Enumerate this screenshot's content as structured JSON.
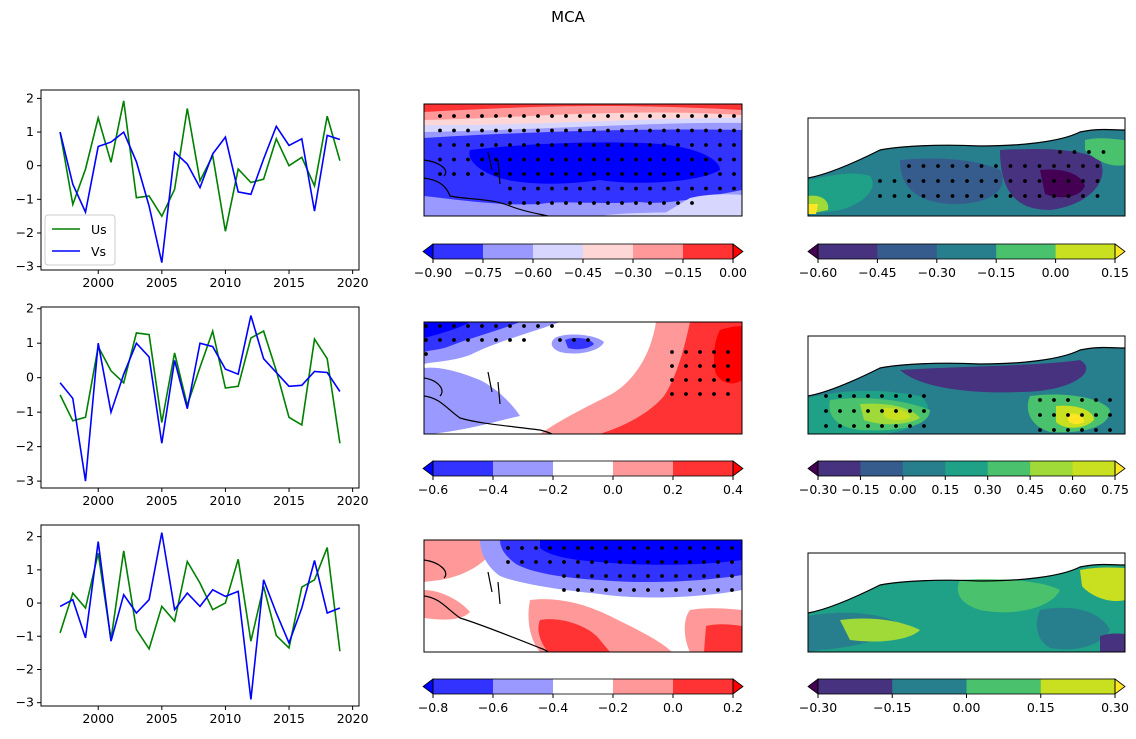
{
  "title": "MCA",
  "colors": {
    "us_line": "#008000",
    "vs_line": "#0000ff",
    "bwr": [
      "#0000ff",
      "#3333ff",
      "#9999ff",
      "#d6d6ff",
      "#ffffff",
      "#ffd6d6",
      "#ff9999",
      "#ff3333",
      "#ff0000"
    ],
    "viridis": [
      "#440154",
      "#46327e",
      "#365c8d",
      "#277f8e",
      "#1fa187",
      "#4ac16d",
      "#a0da39",
      "#c8e020",
      "#fde725"
    ]
  },
  "chart_data": [
    {
      "type": "line",
      "xlim": [
        1995.5,
        2020.5
      ],
      "ylim": [
        -3.1,
        2.25
      ],
      "xticks": [
        2000,
        2005,
        2010,
        2015,
        2020
      ],
      "yticks": [
        -3,
        -2,
        -1,
        0,
        1,
        2
      ],
      "x": [
        1997,
        1998,
        1999,
        2000,
        2001,
        2002,
        2003,
        2004,
        2005,
        2006,
        2007,
        2008,
        2009,
        2010,
        2011,
        2012,
        2013,
        2014,
        2015,
        2016,
        2017,
        2018,
        2019
      ],
      "legend_position": "lower-left",
      "series": [
        {
          "name": "Us",
          "values": [
            1.0,
            -1.15,
            -0.1,
            1.42,
            0.1,
            1.93,
            -0.95,
            -0.9,
            -1.5,
            -0.7,
            1.7,
            -0.45,
            0.3,
            -1.95,
            -0.1,
            -0.5,
            -0.4,
            0.8,
            0.0,
            0.25,
            -0.6,
            1.47,
            0.15
          ]
        },
        {
          "name": "Vs",
          "values": [
            1.0,
            -0.55,
            -1.38,
            0.57,
            0.7,
            1.0,
            0.12,
            -1.2,
            -2.88,
            0.4,
            0.05,
            -0.65,
            0.35,
            0.85,
            -0.78,
            -0.85,
            0.2,
            1.17,
            0.6,
            0.8,
            -1.35,
            0.9,
            0.78
          ]
        }
      ]
    },
    {
      "type": "line",
      "xlim": [
        1995.5,
        2020.5
      ],
      "ylim": [
        -3.2,
        2.05
      ],
      "xticks": [
        2000,
        2005,
        2010,
        2015,
        2020
      ],
      "yticks": [
        -3,
        -2,
        -1,
        0,
        1,
        2
      ],
      "x": [
        1997,
        1998,
        1999,
        2000,
        2001,
        2002,
        2003,
        2004,
        2005,
        2006,
        2007,
        2008,
        2009,
        2010,
        2011,
        2012,
        2013,
        2014,
        2015,
        2016,
        2017,
        2018,
        2019
      ],
      "series": [
        {
          "name": "Us",
          "values": [
            -0.5,
            -1.25,
            -1.15,
            0.9,
            0.2,
            -0.15,
            1.3,
            1.25,
            -1.3,
            0.72,
            -0.8,
            0.3,
            1.35,
            -0.3,
            -0.25,
            1.15,
            1.35,
            0.2,
            -1.15,
            -1.37,
            1.12,
            0.55,
            -1.9
          ]
        },
        {
          "name": "Vs",
          "values": [
            -0.15,
            -0.6,
            -3.0,
            1.0,
            -1.0,
            0.1,
            1.0,
            0.6,
            -1.9,
            0.5,
            -0.9,
            1.0,
            0.9,
            0.25,
            0.1,
            1.8,
            0.55,
            0.15,
            -0.25,
            -0.22,
            0.18,
            0.15,
            -0.4
          ]
        }
      ]
    },
    {
      "type": "line",
      "xlim": [
        1995.5,
        2020.5
      ],
      "ylim": [
        -3.1,
        2.35
      ],
      "xticks": [
        2000,
        2005,
        2010,
        2015,
        2020
      ],
      "yticks": [
        -3,
        -2,
        -1,
        0,
        1,
        2
      ],
      "x": [
        1997,
        1998,
        1999,
        2000,
        2001,
        2002,
        2003,
        2004,
        2005,
        2006,
        2007,
        2008,
        2009,
        2010,
        2011,
        2012,
        2013,
        2014,
        2015,
        2016,
        2017,
        2018,
        2019
      ],
      "series": [
        {
          "name": "Us",
          "values": [
            -0.9,
            0.3,
            -0.15,
            1.5,
            -1.1,
            1.57,
            -0.8,
            -1.38,
            -0.1,
            -0.55,
            1.25,
            0.6,
            -0.2,
            0.0,
            1.32,
            -1.15,
            0.5,
            -0.98,
            -1.35,
            0.48,
            0.7,
            1.67,
            -1.45
          ]
        },
        {
          "name": "Vs",
          "values": [
            -0.1,
            0.1,
            -1.05,
            1.85,
            -1.15,
            0.25,
            -0.3,
            0.1,
            2.12,
            -0.2,
            0.3,
            -0.1,
            0.4,
            0.2,
            0.35,
            -2.9,
            0.7,
            -0.3,
            -1.2,
            -0.15,
            1.28,
            -0.3,
            -0.15
          ]
        }
      ]
    },
    {
      "type": "heatmap",
      "colorbar": {
        "cmap": "bwr",
        "ticks": [
          "−0.90",
          "−0.75",
          "−0.60",
          "−0.45",
          "−0.30",
          "−0.15",
          "0.00"
        ],
        "levels": [
          1,
          2,
          3,
          5,
          6,
          7
        ]
      }
    },
    {
      "type": "heatmap",
      "colorbar": {
        "cmap": "bwr",
        "ticks": [
          "−0.6",
          "−0.4",
          "−0.2",
          "0.0",
          "0.2",
          "0.4"
        ],
        "levels": [
          1,
          2,
          4,
          6,
          7
        ]
      }
    },
    {
      "type": "heatmap",
      "colorbar": {
        "cmap": "bwr",
        "ticks": [
          "−0.8",
          "−0.6",
          "−0.4",
          "−0.2",
          "0.0",
          "0.2"
        ],
        "levels": [
          1,
          2,
          4,
          6,
          7
        ]
      }
    },
    {
      "type": "heatmap",
      "colorbar": {
        "cmap": "viridis",
        "ticks": [
          "−0.60",
          "−0.45",
          "−0.30",
          "−0.15",
          "0.00",
          "0.15"
        ],
        "levels": [
          1,
          2,
          3,
          5,
          7
        ]
      }
    },
    {
      "type": "heatmap",
      "colorbar": {
        "cmap": "viridis",
        "ticks": [
          "−0.30",
          "−0.15",
          "0.00",
          "0.15",
          "0.30",
          "0.45",
          "0.60",
          "0.75"
        ],
        "levels": [
          1,
          2,
          3,
          4,
          5,
          6,
          7
        ]
      }
    },
    {
      "type": "heatmap",
      "colorbar": {
        "cmap": "viridis",
        "ticks": [
          "−0.30",
          "−0.15",
          "0.00",
          "0.15",
          "0.30"
        ],
        "levels": [
          1,
          3,
          5,
          7
        ]
      }
    }
  ]
}
